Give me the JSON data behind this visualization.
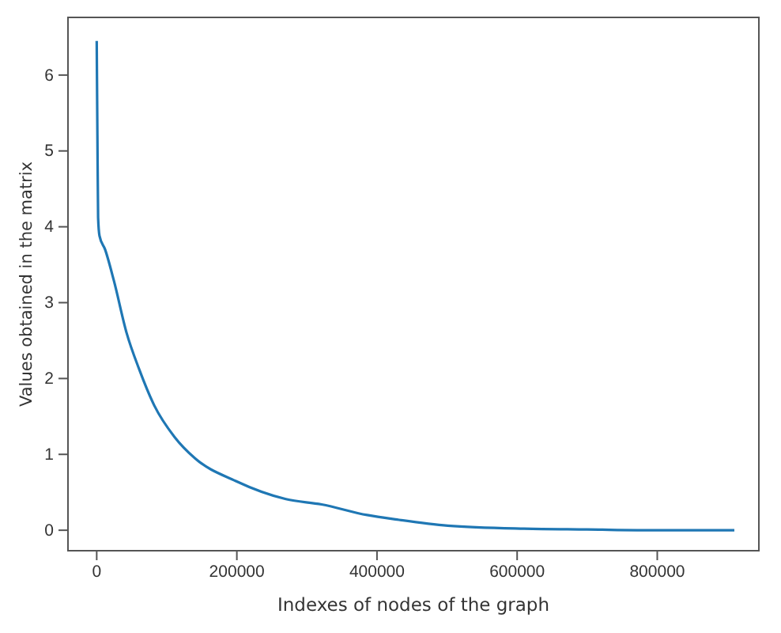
{
  "chart_data": {
    "type": "line",
    "xlabel": "Indexes of nodes of the graph",
    "ylabel": "Values obtained in the matrix",
    "xlim": [
      -41000,
      945000
    ],
    "ylim": [
      -0.27,
      6.76
    ],
    "xticks": [
      0,
      200000,
      400000,
      600000,
      800000
    ],
    "yticks": [
      0,
      1,
      2,
      3,
      4,
      5,
      6
    ],
    "marker": "none",
    "line_style": "solid",
    "series": [
      {
        "color": "#1f77b4",
        "x": [
          0,
          1000,
          2000,
          4000,
          12000,
          24500,
          42700,
          60700,
          82400,
          111000,
          140000,
          198000,
          270000,
          321000,
          386000,
          429000,
          501000,
          610000,
          700000,
          800000,
          910000
        ],
        "values": [
          6.45,
          5.2,
          4.12,
          3.88,
          3.7,
          3.29,
          2.6,
          2.12,
          1.64,
          1.23,
          0.95,
          0.65,
          0.41,
          0.34,
          0.2,
          0.14,
          0.06,
          0.02,
          0.01,
          0.0,
          0.0
        ]
      }
    ]
  }
}
